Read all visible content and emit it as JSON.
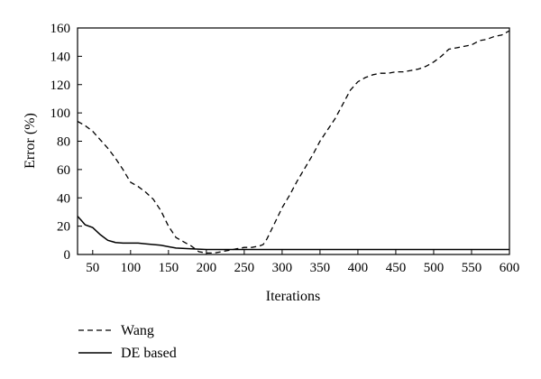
{
  "chart_data": {
    "type": "line",
    "xlabel": "Iterations",
    "ylabel": "Error (%)",
    "xlim": [
      30,
      600
    ],
    "ylim": [
      0,
      160
    ],
    "xticks": [
      50,
      100,
      150,
      200,
      250,
      300,
      350,
      400,
      450,
      500,
      550,
      600
    ],
    "yticks": [
      0,
      20,
      40,
      60,
      80,
      100,
      120,
      140,
      160
    ],
    "grid": false,
    "legend_position": "bottom-left, below plot",
    "series": [
      {
        "name": "Wang",
        "style": "dashed",
        "color": "#000000",
        "x": [
          30,
          40,
          50,
          60,
          70,
          80,
          90,
          100,
          110,
          120,
          130,
          140,
          150,
          160,
          170,
          180,
          190,
          200,
          210,
          220,
          230,
          240,
          250,
          260,
          270,
          275,
          280,
          290,
          300,
          310,
          320,
          330,
          340,
          350,
          360,
          370,
          380,
          390,
          400,
          410,
          420,
          430,
          440,
          450,
          460,
          470,
          480,
          490,
          500,
          510,
          520,
          530,
          540,
          550,
          560,
          570,
          580,
          590,
          600
        ],
        "y": [
          94,
          91,
          87,
          81,
          75,
          68,
          60,
          51,
          48,
          44,
          39,
          31,
          20,
          12,
          9,
          6,
          2,
          1,
          1,
          2,
          3,
          4,
          5,
          5,
          6,
          7,
          11,
          22,
          33,
          42,
          52,
          61,
          70,
          80,
          88,
          96,
          106,
          116,
          122,
          125,
          127,
          128,
          128,
          129,
          129,
          130,
          131,
          133,
          136,
          140,
          145,
          146,
          147,
          148,
          151,
          152,
          154,
          155,
          158
        ]
      },
      {
        "name": "DE based",
        "style": "solid",
        "color": "#000000",
        "x": [
          30,
          35,
          40,
          50,
          60,
          70,
          80,
          90,
          100,
          110,
          120,
          130,
          140,
          150,
          160,
          180,
          200,
          220,
          240,
          260,
          280,
          300,
          350,
          400,
          450,
          500,
          550,
          600
        ],
        "y": [
          27,
          24,
          21,
          19,
          14,
          10,
          8.5,
          8,
          8,
          8,
          7.5,
          7,
          6.5,
          5.5,
          4.5,
          4,
          3.5,
          3.5,
          3.5,
          3.5,
          3.5,
          3.5,
          3.5,
          3.5,
          3.5,
          3.5,
          3.5,
          3.5
        ]
      }
    ]
  }
}
